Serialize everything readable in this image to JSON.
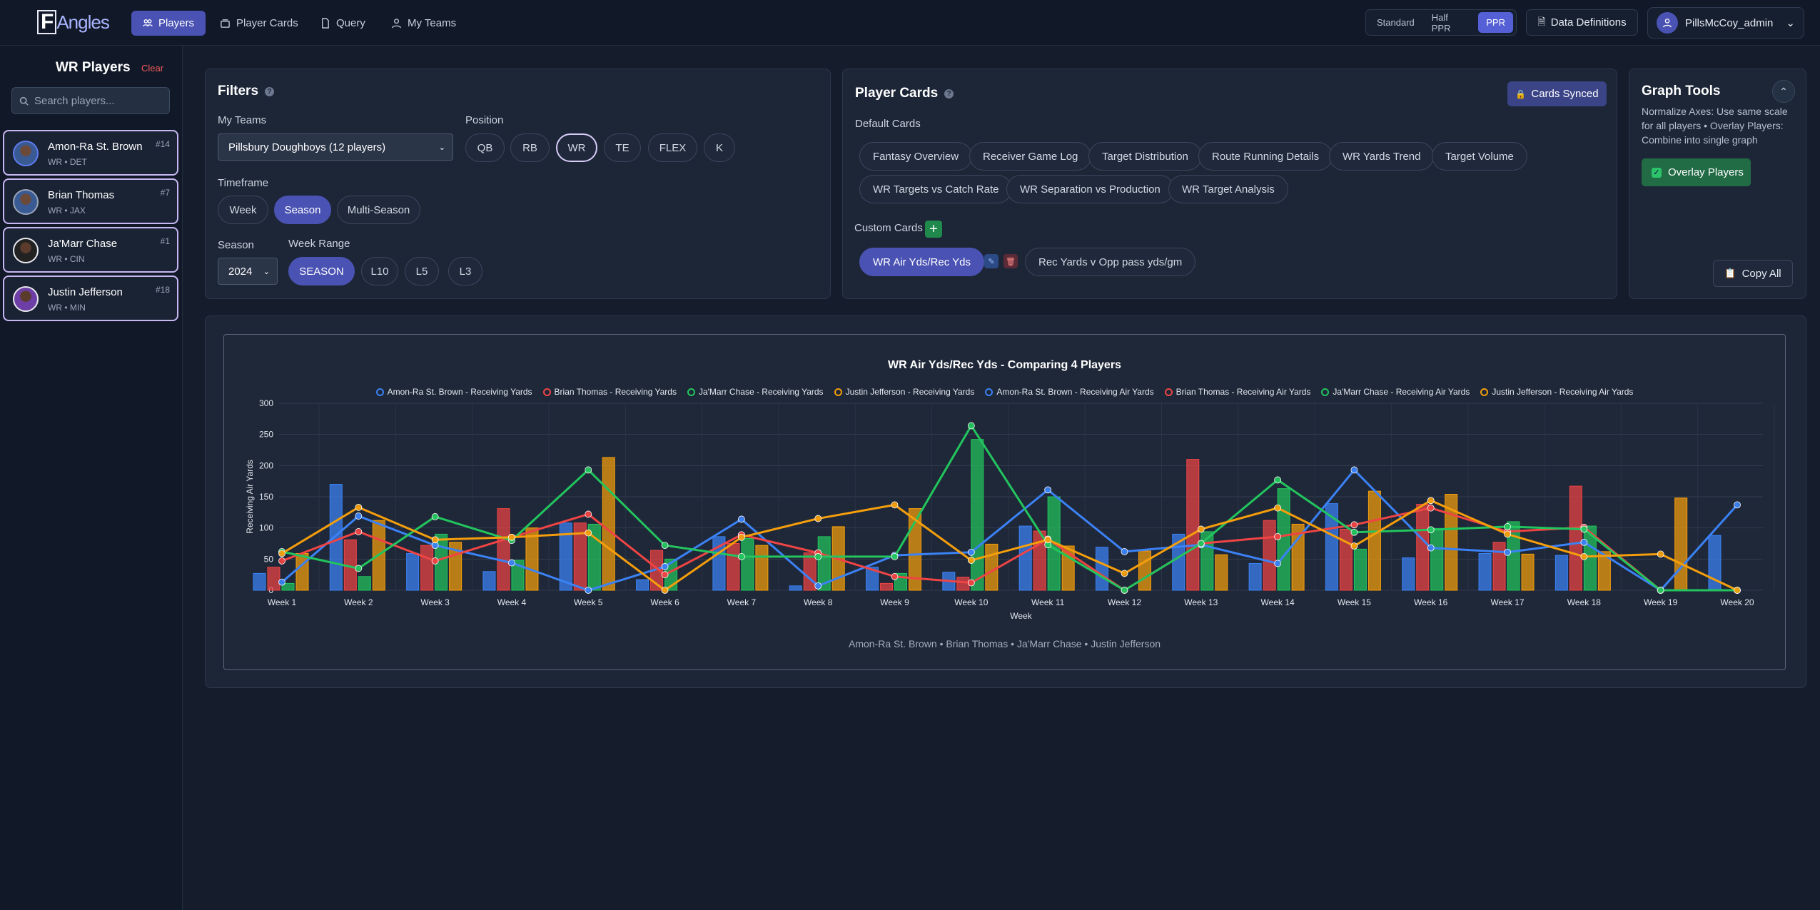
{
  "app": {
    "logo_f": "F",
    "logo_rest": "Angles"
  },
  "nav": [
    {
      "label": "Players",
      "icon": "players-icon"
    },
    {
      "label": "Player Cards",
      "icon": "cards-icon"
    },
    {
      "label": "Query",
      "icon": "document-icon"
    },
    {
      "label": "My Teams",
      "icon": "team-icon"
    }
  ],
  "scoring": {
    "options": [
      "Standard",
      "Half PPR",
      "PPR"
    ],
    "selected": "PPR"
  },
  "data_definitions": "Data Definitions",
  "user": {
    "name": "PillsMcCoy_admin"
  },
  "sidebar": {
    "title": "WR Players",
    "clear": "Clear",
    "search_placeholder": "Search players...",
    "players": [
      {
        "name": "Amon-Ra St. Brown",
        "team": "WR • DET",
        "rank": "#14"
      },
      {
        "name": "Brian Thomas",
        "team": "WR • JAX",
        "rank": "#7"
      },
      {
        "name": "Ja'Marr Chase",
        "team": "WR • CIN",
        "rank": "#1"
      },
      {
        "name": "Justin Jefferson",
        "team": "WR • MIN",
        "rank": "#18"
      }
    ]
  },
  "filters": {
    "title": "Filters",
    "my_teams_label": "My Teams",
    "my_teams_value": "Pillsbury Doughboys (12 players)",
    "position_label": "Position",
    "positions": [
      "QB",
      "RB",
      "WR",
      "TE",
      "FLEX",
      "K"
    ],
    "position_selected": "WR",
    "timeframe_label": "Timeframe",
    "timeframes": [
      "Week",
      "Season",
      "Multi-Season"
    ],
    "timeframe_selected": "Season",
    "season_label": "Season",
    "season_value": "2024",
    "week_range_label": "Week Range",
    "week_ranges": [
      "SEASON",
      "L10",
      "L5",
      "L3"
    ],
    "week_range_selected": "SEASON"
  },
  "player_cards": {
    "title": "Player Cards",
    "synced": "Cards Synced",
    "default_label": "Default Cards",
    "default_cards": [
      "Fantasy Overview",
      "Receiver Game Log",
      "Target Distribution",
      "Route Running Details",
      "WR Yards Trend",
      "Target Volume",
      "WR Targets vs Catch Rate",
      "WR Separation vs Production",
      "WR Target Analysis"
    ],
    "custom_label": "Custom Cards",
    "custom_cards": [
      "WR Air Yds/Rec Yds",
      "Rec Yards v Opp pass yds/gm"
    ]
  },
  "graph_tools": {
    "title": "Graph Tools",
    "description": "Normalize Axes: Use same scale for all players • Overlay Players: Combine into single graph",
    "overlay_label": "Overlay Players",
    "copy_all": "Copy All"
  },
  "colors": {
    "blue": "#3b82f6",
    "red": "#ef4444",
    "green": "#22c55e",
    "orange": "#f59e0b"
  },
  "chart_data": {
    "type": "bar+line",
    "title": "WR Air Yds/Rec Yds - Comparing 4 Players",
    "xlabel": "Week",
    "ylabel": "Receiving Air Yards",
    "ylim": [
      0,
      300
    ],
    "yticks": [
      0,
      50,
      100,
      150,
      200,
      250,
      300
    ],
    "categories": [
      "Week 1",
      "Week 2",
      "Week 3",
      "Week 4",
      "Week 5",
      "Week 6",
      "Week 7",
      "Week 8",
      "Week 9",
      "Week 10",
      "Week 11",
      "Week 12",
      "Week 13",
      "Week 14",
      "Week 15",
      "Week 16",
      "Week 17",
      "Week 18",
      "Week 19",
      "Week 20"
    ],
    "line_series": [
      {
        "name": "Amon-Ra St. Brown - Receiving Yards",
        "color": "#3b82f6",
        "values": [
          13,
          119,
          72,
          44,
          0,
          38,
          114,
          7,
          56,
          61,
          161,
          62,
          73,
          43,
          193,
          68,
          61,
          77,
          0,
          137
        ]
      },
      {
        "name": "Brian Thomas - Receiving Yards",
        "color": "#ef4444",
        "values": [
          47,
          94,
          47,
          85,
          122,
          25,
          89,
          60,
          22,
          12,
          82,
          0,
          75,
          86,
          105,
          132,
          94,
          101,
          0,
          0
        ]
      },
      {
        "name": "Ja'Marr Chase - Receiving Yards",
        "color": "#22c55e",
        "values": [
          62,
          35,
          118,
          80,
          193,
          72,
          54,
          54,
          54,
          264,
          73,
          0,
          75,
          177,
          93,
          97,
          102,
          98,
          0,
          0
        ]
      },
      {
        "name": "Justin Jefferson - Receiving Yards",
        "color": "#f59e0b",
        "values": [
          59,
          133,
          81,
          85,
          92,
          0,
          85,
          115,
          137,
          48,
          81,
          27,
          98,
          132,
          71,
          144,
          90,
          54,
          58,
          0
        ]
      }
    ],
    "bar_series": [
      {
        "name": "Amon-Ra St. Brown - Receiving Air Yards",
        "color": "#3b82f6",
        "values": [
          27,
          170,
          59,
          30,
          108,
          17,
          86,
          7,
          37,
          29,
          103,
          69,
          90,
          43,
          139,
          52,
          59,
          56,
          0,
          88
        ]
      },
      {
        "name": "Brian Thomas - Receiving Air Yards",
        "color": "#ef4444",
        "values": [
          37,
          81,
          72,
          131,
          108,
          64,
          75,
          60,
          11,
          21,
          95,
          0,
          210,
          112,
          98,
          138,
          77,
          167,
          0,
          0
        ]
      },
      {
        "name": "Ja'Marr Chase - Receiving Air Yards",
        "color": "#22c55e",
        "values": [
          11,
          22,
          90,
          48,
          106,
          50,
          83,
          86,
          27,
          242,
          150,
          0,
          94,
          163,
          66,
          99,
          110,
          103,
          0,
          0
        ]
      },
      {
        "name": "Justin Jefferson - Receiving Air Yards",
        "color": "#f59e0b",
        "values": [
          59,
          112,
          77,
          100,
          213,
          0,
          72,
          102,
          131,
          74,
          71,
          63,
          57,
          106,
          159,
          154,
          58,
          62,
          148,
          0
        ]
      }
    ],
    "footer": "Amon-Ra St. Brown • Brian Thomas • Ja'Marr Chase • Justin Jefferson"
  }
}
